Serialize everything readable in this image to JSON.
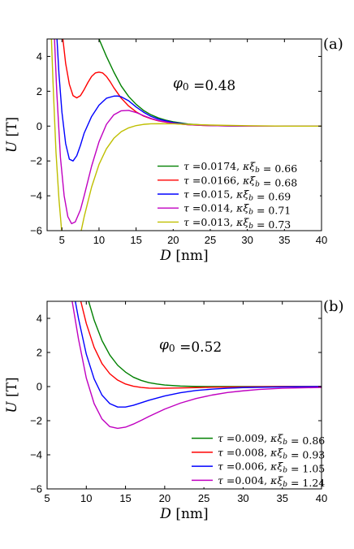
{
  "chart_data": [
    {
      "type": "line",
      "panel_label": "(a)",
      "annotation": "φ0 =0.48",
      "xlabel": "D [nm]",
      "ylabel": "U [T]",
      "xlim": [
        3,
        40
      ],
      "ylim": [
        -6,
        5
      ],
      "xticks": [
        5,
        10,
        15,
        20,
        25,
        30,
        35,
        40
      ],
      "yticks": [
        -6,
        -4,
        -2,
        0,
        2,
        4
      ],
      "grid": false,
      "legend_position": "bottom-right",
      "series": [
        {
          "name": "τ =0.0174, κξb = 0.66",
          "color": "#008000",
          "x": [
            7.6,
            9,
            10,
            11,
            12,
            13,
            14,
            15,
            16,
            17,
            18,
            19,
            20,
            22,
            24,
            26,
            28,
            30,
            35,
            40
          ],
          "y": [
            7.0,
            5.9,
            5.0,
            4.0,
            3.1,
            2.3,
            1.7,
            1.25,
            0.9,
            0.65,
            0.47,
            0.34,
            0.25,
            0.12,
            0.06,
            0.03,
            0.01,
            0.0,
            0.0,
            0.0
          ]
        },
        {
          "name": "τ =0.0166, κξb = 0.68",
          "color": "#ff0000",
          "x": [
            4.5,
            5,
            5.5,
            6,
            6.5,
            7,
            7.5,
            8,
            8.5,
            9,
            9.5,
            10,
            10.5,
            11,
            11.5,
            12,
            13,
            14,
            15,
            16,
            17,
            18,
            20,
            22,
            24,
            26,
            30,
            35,
            40
          ],
          "y": [
            7.0,
            5.5,
            3.6,
            2.4,
            1.75,
            1.62,
            1.75,
            2.1,
            2.5,
            2.85,
            3.05,
            3.1,
            3.05,
            2.85,
            2.55,
            2.2,
            1.6,
            1.15,
            0.82,
            0.58,
            0.42,
            0.3,
            0.15,
            0.08,
            0.04,
            0.02,
            0.0,
            0.0,
            0.0
          ]
        },
        {
          "name": "τ =0.015, κξb = 0.69",
          "color": "#0000ff",
          "x": [
            4.2,
            4.6,
            5,
            5.5,
            6,
            6.5,
            7,
            7.5,
            8,
            9,
            10,
            11,
            12,
            12.5,
            13,
            14,
            15,
            16,
            17,
            18,
            20,
            22,
            24,
            26,
            30,
            35,
            40
          ],
          "y": [
            6.0,
            3.0,
            0.8,
            -1.0,
            -1.9,
            -2.0,
            -1.7,
            -1.1,
            -0.4,
            0.55,
            1.2,
            1.6,
            1.72,
            1.73,
            1.68,
            1.45,
            1.1,
            0.8,
            0.56,
            0.4,
            0.2,
            0.1,
            0.05,
            0.02,
            0.0,
            0.0,
            0.0
          ]
        },
        {
          "name": "τ =0.014, κξb = 0.71",
          "color": "#c000c0",
          "x": [
            3.9,
            4.3,
            4.8,
            5.3,
            5.8,
            6.3,
            6.8,
            7.5,
            8,
            9,
            10,
            11,
            12,
            13,
            14,
            15,
            16,
            17,
            18,
            20,
            22,
            24,
            26,
            30,
            35,
            40
          ],
          "y": [
            6.0,
            2.0,
            -1.8,
            -4.0,
            -5.2,
            -5.6,
            -5.5,
            -4.8,
            -4.0,
            -2.3,
            -0.9,
            0.1,
            0.65,
            0.88,
            0.9,
            0.78,
            0.6,
            0.44,
            0.32,
            0.16,
            0.08,
            0.04,
            0.02,
            0.0,
            0.0,
            0.0
          ]
        },
        {
          "name": "τ =0.013, κξb = 0.73",
          "color": "#bfbf00",
          "x": [
            3.5,
            3.8,
            4.2,
            4.6,
            5.0
          ],
          "y": [
            6.0,
            2.5,
            -1.5,
            -4.2,
            -6.2
          ]
        },
        {
          "name": "",
          "color": "#bfbf00",
          "x": [
            7.5,
            8,
            9,
            10,
            11,
            12,
            13,
            14,
            15,
            16,
            17,
            18,
            20,
            22,
            25,
            30,
            35,
            40
          ],
          "y": [
            -6.2,
            -5.2,
            -3.5,
            -2.2,
            -1.3,
            -0.7,
            -0.32,
            -0.1,
            0.03,
            0.1,
            0.13,
            0.14,
            0.13,
            0.1,
            0.06,
            0.02,
            0.0,
            0.0
          ]
        }
      ]
    },
    {
      "type": "line",
      "panel_label": "(b)",
      "annotation": "φ0 =0.52",
      "xlabel": "D [nm]",
      "ylabel": "U [T]",
      "xlim": [
        5,
        40
      ],
      "ylim": [
        -6,
        5
      ],
      "xticks": [
        5,
        10,
        15,
        20,
        25,
        30,
        35,
        40
      ],
      "yticks": [
        -6,
        -4,
        -2,
        0,
        2,
        4
      ],
      "grid": false,
      "legend_position": "bottom-right",
      "series": [
        {
          "name": "τ =0.009, κξb = 0.86",
          "color": "#008000",
          "x": [
            10.3,
            11,
            12,
            13,
            14,
            15,
            16,
            17,
            18,
            19,
            20,
            22,
            24,
            26,
            30,
            35,
            40
          ],
          "y": [
            5.0,
            3.9,
            2.7,
            1.85,
            1.25,
            0.85,
            0.55,
            0.36,
            0.23,
            0.15,
            0.09,
            0.03,
            0.01,
            0.0,
            0.0,
            0.0,
            0.0
          ]
        },
        {
          "name": "τ =0.008, κξb = 0.93",
          "color": "#ff0000",
          "x": [
            9.3,
            10,
            11,
            12,
            13,
            14,
            15,
            16,
            17,
            18,
            19,
            20,
            22,
            24,
            26,
            30,
            35,
            40
          ],
          "y": [
            5.0,
            3.7,
            2.3,
            1.35,
            0.75,
            0.38,
            0.15,
            0.02,
            -0.05,
            -0.09,
            -0.1,
            -0.1,
            -0.08,
            -0.06,
            -0.04,
            -0.02,
            0.0,
            0.0
          ]
        },
        {
          "name": "τ =0.006, κξb = 1.05",
          "color": "#0000ff",
          "x": [
            8.6,
            9,
            10,
            11,
            12,
            13,
            14,
            15,
            16,
            17,
            18,
            20,
            22,
            24,
            26,
            28,
            30,
            35,
            40
          ],
          "y": [
            5.0,
            4.0,
            1.9,
            0.45,
            -0.5,
            -1.0,
            -1.2,
            -1.2,
            -1.1,
            -0.95,
            -0.8,
            -0.55,
            -0.36,
            -0.23,
            -0.15,
            -0.1,
            -0.06,
            -0.02,
            0.0
          ]
        },
        {
          "name": "τ =0.004, κξb = 1.24",
          "color": "#c000c0",
          "x": [
            8.2,
            9,
            10,
            11,
            12,
            13,
            14,
            15,
            16,
            17,
            18,
            20,
            22,
            24,
            26,
            28,
            30,
            32,
            35,
            40
          ],
          "y": [
            5.0,
            2.8,
            0.5,
            -1.0,
            -1.9,
            -2.35,
            -2.45,
            -2.38,
            -2.2,
            -1.98,
            -1.75,
            -1.32,
            -0.97,
            -0.7,
            -0.5,
            -0.35,
            -0.25,
            -0.17,
            -0.1,
            -0.05
          ]
        }
      ]
    }
  ]
}
